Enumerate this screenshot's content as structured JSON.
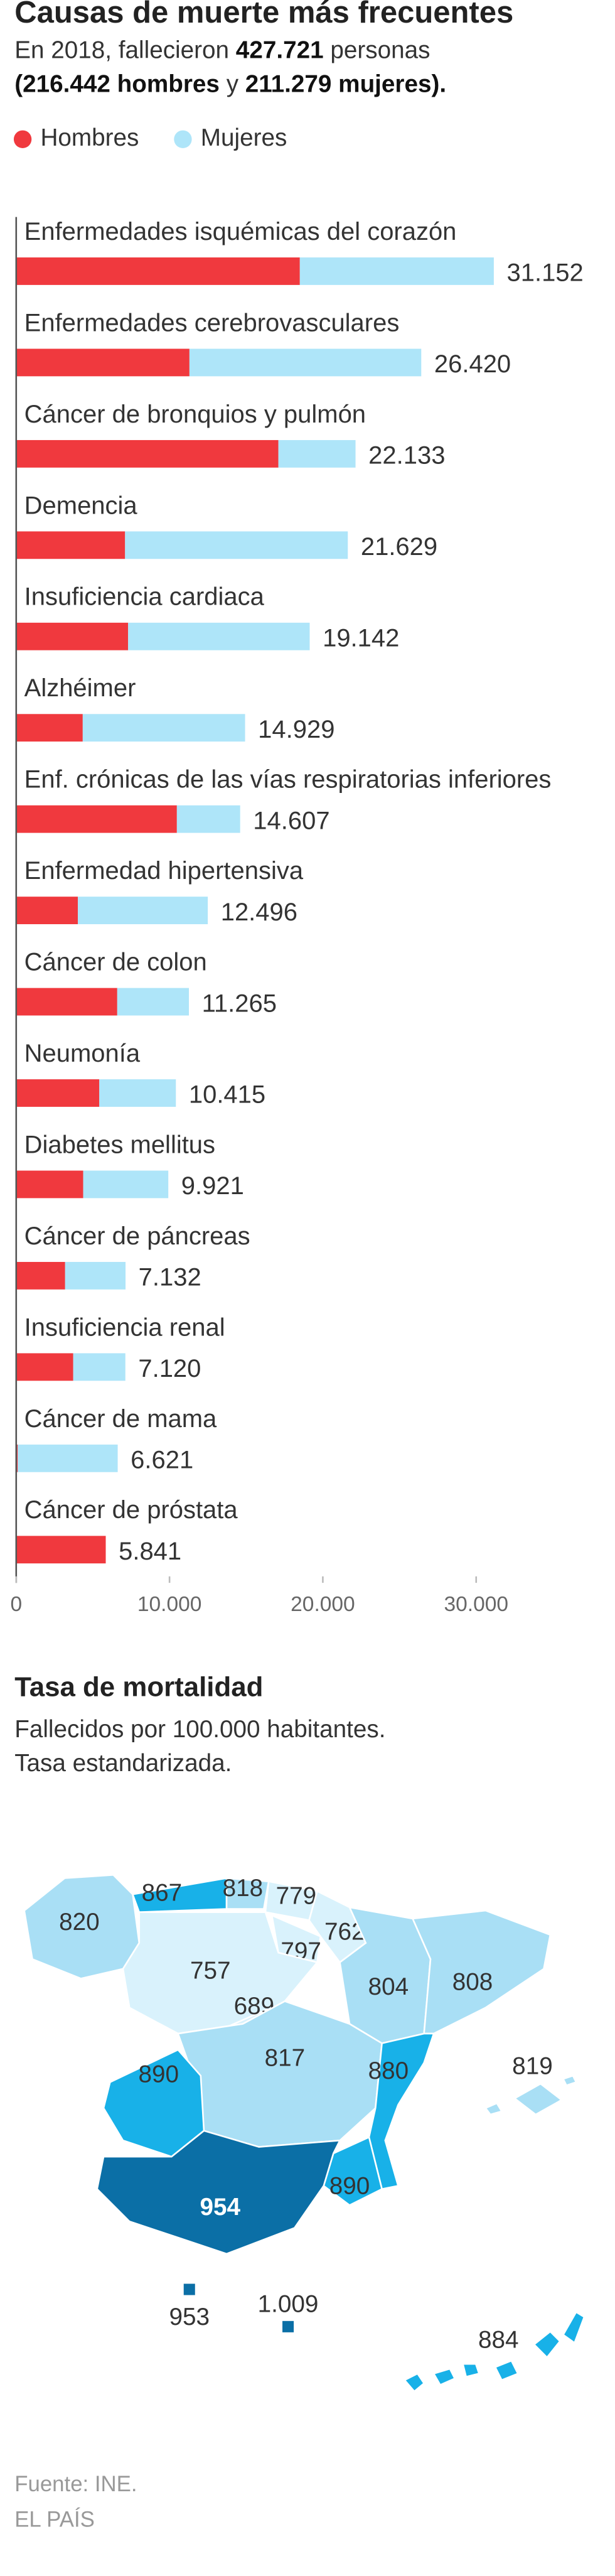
{
  "chart_data": {
    "type": "stacked_bar_horizontal",
    "title": "Causas de muerte más frecuentes",
    "subtitle": [
      "En 2018, fallecieron ",
      "427.721",
      " personas",
      "(216.442 hombres",
      " y ",
      "211.279 mujeres)."
    ],
    "categories": [
      "Enfermedades isquémicas del corazón",
      "Enfermedades cerebrovasculares",
      "Cáncer de bronquios y pulmón",
      "Demencia",
      "Insuficiencia cardiaca",
      "Alzhéimer",
      "Enf. crónicas de las vías respiratorias inferiores",
      "Enfermedad hipertensiva",
      "Cáncer de colon",
      "Neumonía",
      "Diabetes mellitus",
      "Cáncer de páncreas",
      "Insuficiencia renal",
      "Cáncer de mama",
      "Cáncer de próstata"
    ],
    "series": [
      {
        "name": "Hombres",
        "color": "#f0393e",
        "values": [
          18500,
          11300,
          17100,
          7100,
          7300,
          4340,
          10480,
          4020,
          6590,
          5420,
          4370,
          3190,
          3720,
          100,
          5841
        ]
      },
      {
        "name": "Mujeres",
        "color": "#aee5f9",
        "values": [
          12652,
          15120,
          5033,
          14529,
          11842,
          10589,
          4127,
          8476,
          4675,
          4995,
          5551,
          3942,
          3400,
          6521,
          0
        ]
      }
    ],
    "totals": [
      {
        "value": 31152,
        "label": "31.152"
      },
      {
        "value": 26420,
        "label": "26.420"
      },
      {
        "value": 22133,
        "label": "22.133"
      },
      {
        "value": 21629,
        "label": "21.629"
      },
      {
        "value": 19142,
        "label": "19.142"
      },
      {
        "value": 14929,
        "label": "14.929"
      },
      {
        "value": 14607,
        "label": "14.607"
      },
      {
        "value": 12496,
        "label": "12.496"
      },
      {
        "value": 11265,
        "label": "11.265"
      },
      {
        "value": 10415,
        "label": "10.415"
      },
      {
        "value": 9921,
        "label": "9.921"
      },
      {
        "value": 7132,
        "label": "7.132"
      },
      {
        "value": 7120,
        "label": "7.120"
      },
      {
        "value": 6621,
        "label": "6.621"
      },
      {
        "value": 5841,
        "label": "5.841"
      }
    ],
    "xlim": [
      0,
      38000
    ],
    "xticks": [
      0,
      {
        "value": 10000,
        "label": "10.000"
      },
      {
        "value": 20000,
        "label": "20.000"
      },
      {
        "value": 30000,
        "label": "30.000"
      }
    ],
    "grid": false
  },
  "map": {
    "title": "Tasa de mortalidad",
    "subtitle": [
      "Fallecidos por 100.000 habitantes.",
      "Tasa estandarizada."
    ],
    "regions": [
      {
        "value": 820,
        "color": "#a9dff5"
      },
      {
        "value": 867,
        "color": "#18b1e8"
      },
      {
        "value": 818,
        "color": "#a9dff5"
      },
      {
        "value": 779,
        "color": "#d9f2fc"
      },
      {
        "value": 762,
        "color": "#d9f2fc"
      },
      {
        "value": 797,
        "color": "#d9f2fc"
      },
      {
        "value": 757,
        "color": "#d9f2fc"
      },
      {
        "value": 804,
        "color": "#a9dff5"
      },
      {
        "value": 808,
        "color": "#a9dff5"
      },
      {
        "value": 819,
        "color": "#a9dff5"
      },
      {
        "value": 689,
        "color": "#d9f2fc"
      },
      {
        "value": 817,
        "color": "#a9dff5"
      },
      {
        "value": 880,
        "color": "#18b1e8"
      },
      {
        "value": 890,
        "color": "#18b1e8"
      },
      {
        "value": 890,
        "color": "#18b1e8"
      },
      {
        "value": 954,
        "color": "#0b6fa6"
      },
      {
        "value": 953,
        "color": "#0b6fa6"
      },
      {
        "value": 1009,
        "label": "1.009",
        "color": "#0b6fa6"
      },
      {
        "value": 884,
        "color": "#18b1e8"
      }
    ]
  },
  "footer": {
    "source": "Fuente: INE.",
    "brand": "EL PAÍS"
  }
}
